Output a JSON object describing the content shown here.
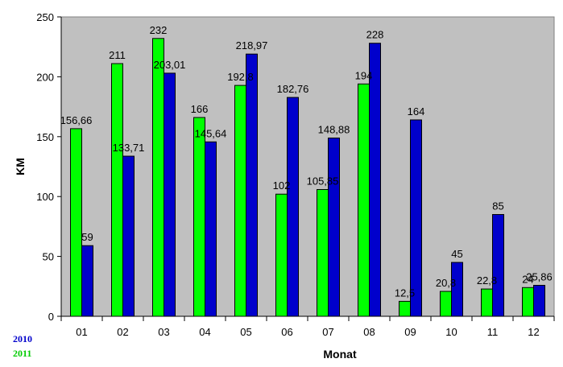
{
  "chart_data": {
    "type": "bar",
    "categories": [
      "01",
      "02",
      "03",
      "04",
      "05",
      "06",
      "07",
      "08",
      "09",
      "10",
      "11",
      "12"
    ],
    "series": [
      {
        "name": "2011",
        "color": "#00ff00",
        "values": [
          156.66,
          211,
          232,
          166,
          192.8,
          102,
          105.85,
          194,
          12.5,
          20.8,
          22.8,
          24
        ],
        "labels": [
          "156,66",
          "211",
          "232",
          "166",
          "192,8",
          "102",
          "105,85",
          "194",
          "12,5",
          "20,8",
          "22,8",
          "24"
        ]
      },
      {
        "name": "2010",
        "color": "#0000cc",
        "values": [
          59,
          133.71,
          203.01,
          145.64,
          218.97,
          182.76,
          148.88,
          228,
          164,
          45,
          85,
          25.86
        ],
        "labels": [
          "59",
          "133,71",
          "203,01",
          "145,64",
          "218,97",
          "182,76",
          "148,88",
          "228",
          "164",
          "45",
          "85",
          "25,86"
        ]
      }
    ],
    "xlabel": "Monat",
    "ylabel": "KM",
    "ylim": [
      0,
      250
    ],
    "yticks": [
      "0",
      "50",
      "100",
      "150",
      "200",
      "250"
    ],
    "grid": false,
    "plot_background": "#c0c0c0",
    "legend": {
      "placement": "bottom-left",
      "entries": [
        "2010",
        "2011"
      ]
    }
  }
}
